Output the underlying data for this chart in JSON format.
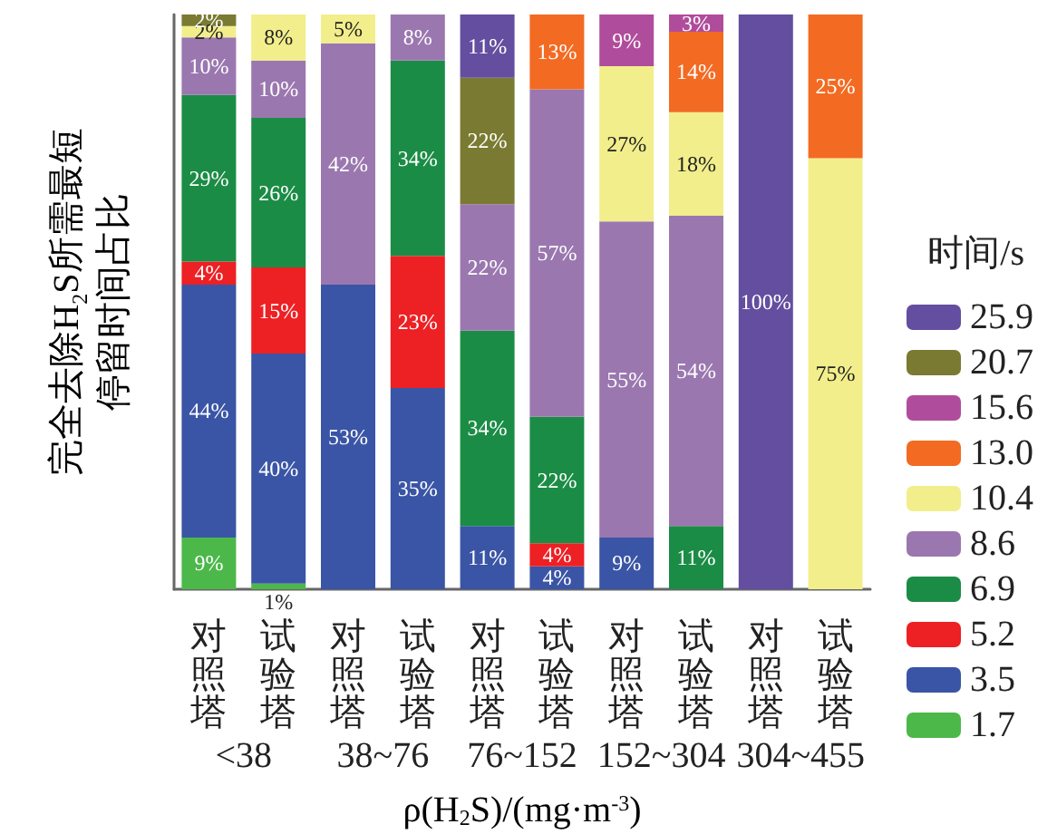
{
  "chart_data": {
    "type": "bar",
    "stacked": true,
    "ylabel": "完全去除H$_{2}$S所需最短停留时间占比",
    "xlabel": "ρ(H$_{2}$S)/(mg·m$^{-3}$)",
    "legend_title": "时间/s",
    "legend": "right",
    "tick_labels": "x",
    "categories": [
      "对照塔",
      "试验塔",
      "对照塔",
      "试验塔",
      "对照塔",
      "试验塔",
      "对照塔",
      "试验塔",
      "对照塔",
      "试验塔"
    ],
    "annotations": [
      "<38",
      "38~76",
      "76~152",
      "152~304",
      "304~455"
    ],
    "series": [
      {
        "name": "1.7",
        "color": "#4cb84a",
        "values": [
          9,
          1,
          0,
          0,
          0,
          0,
          0,
          0,
          0,
          0
        ],
        "value_labels": [
          "9%",
          "1%",
          null,
          null,
          null,
          null,
          null,
          null,
          null,
          null
        ]
      },
      {
        "name": "3.5",
        "color": "#3a55a5",
        "values": [
          44,
          40,
          53,
          35,
          11,
          4,
          9,
          0,
          0,
          0
        ],
        "value_labels": [
          "44%",
          "40%",
          "53%",
          "35%",
          "11%",
          "4%",
          "9%",
          null,
          null,
          null
        ]
      },
      {
        "name": "5.2",
        "color": "#ed2024",
        "values": [
          4,
          15,
          0,
          23,
          0,
          4,
          0,
          0,
          0,
          0
        ],
        "value_labels": [
          "4%",
          "15%",
          null,
          "23%",
          null,
          "4%",
          null,
          null,
          null,
          null
        ]
      },
      {
        "name": "6.9",
        "color": "#1b8c45",
        "values": [
          29,
          26,
          0,
          34,
          34,
          22,
          0,
          11,
          0,
          0
        ],
        "value_labels": [
          "29%",
          "26%",
          null,
          "34%",
          "34%",
          "22%",
          null,
          "11%",
          null,
          null
        ]
      },
      {
        "name": "8.6",
        "color": "#9b77b0",
        "values": [
          10,
          10,
          42,
          8,
          22,
          57,
          55,
          54,
          0,
          0
        ],
        "value_labels": [
          "10%",
          "10%",
          "42%",
          "8%",
          "22%",
          "57%",
          "55%",
          "54%",
          null,
          null
        ]
      },
      {
        "name": "10.4",
        "color": "#f2ee8c",
        "values": [
          2,
          8,
          5,
          0,
          0,
          0,
          27,
          18,
          0,
          75
        ],
        "value_labels": [
          "2%",
          "8%",
          "5%",
          null,
          null,
          null,
          "27%",
          "18%",
          null,
          "75%"
        ]
      },
      {
        "name": "13.0",
        "color": "#f36a22",
        "values": [
          0,
          0,
          0,
          0,
          0,
          13,
          0,
          14,
          0,
          25
        ],
        "value_labels": [
          null,
          null,
          null,
          null,
          null,
          "13%",
          null,
          "14%",
          null,
          "25%"
        ]
      },
      {
        "name": "15.6",
        "color": "#b04c9c",
        "values": [
          0,
          0,
          0,
          0,
          0,
          0,
          9,
          3,
          0,
          0
        ],
        "value_labels": [
          null,
          null,
          null,
          null,
          null,
          null,
          "9%",
          "3%",
          null,
          null
        ]
      },
      {
        "name": "20.7",
        "color": "#7a7a32",
        "values": [
          2,
          0,
          0,
          0,
          22,
          0,
          0,
          0,
          0,
          0
        ],
        "value_labels": [
          "2%",
          null,
          null,
          null,
          "22%",
          null,
          null,
          null,
          null,
          null
        ]
      },
      {
        "name": "25.9",
        "color": "#634e9f",
        "values": [
          0,
          0,
          0,
          0,
          11,
          0,
          0,
          0,
          100,
          0
        ],
        "value_labels": [
          null,
          null,
          null,
          null,
          "11%",
          null,
          null,
          null,
          "100%",
          null
        ]
      }
    ]
  }
}
